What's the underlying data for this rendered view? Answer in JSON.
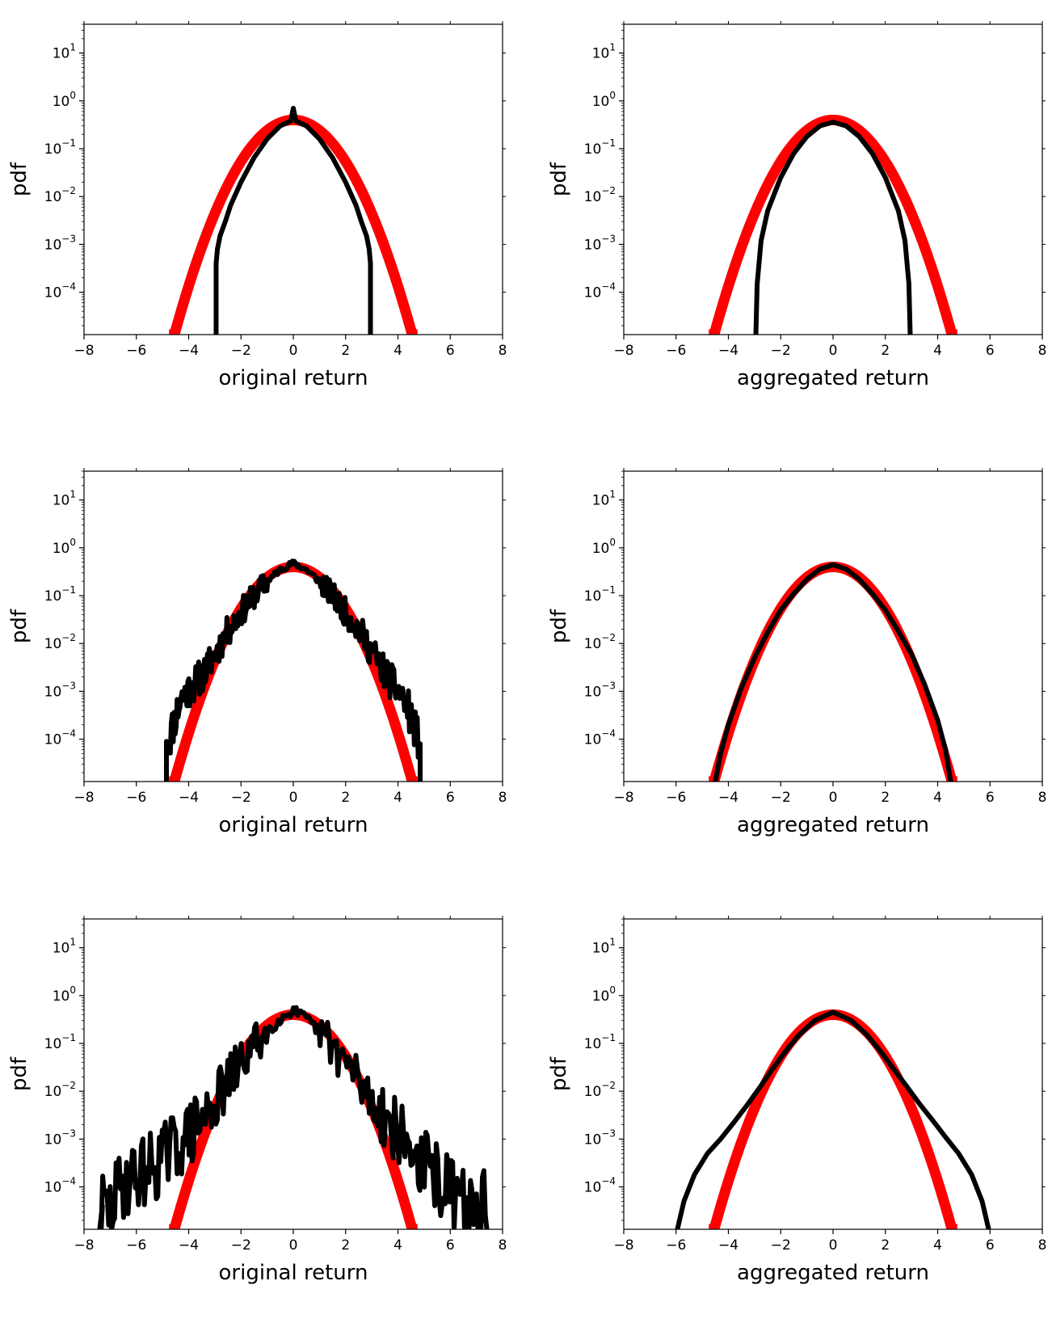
{
  "chart_data": [
    {
      "type": "line",
      "panel": "row1-left",
      "xlabel": "original return",
      "ylabel": "pdf",
      "xlim": [
        -8,
        8
      ],
      "xticks": [
        -8,
        -6,
        -4,
        -2,
        0,
        2,
        4,
        6,
        8
      ],
      "ylim": [
        1.3e-05,
        40
      ],
      "yscale": "log",
      "yticks": [
        {
          "base": "10",
          "exp": "−4",
          "value": 0.0001
        },
        {
          "base": "10",
          "exp": "−3",
          "value": 0.001
        },
        {
          "base": "10",
          "exp": "−2",
          "value": 0.01
        },
        {
          "base": "10",
          "exp": "−1",
          "value": 0.1
        },
        {
          "base": "10",
          "exp": "0",
          "value": 1
        },
        {
          "base": "10",
          "exp": "1",
          "value": 10
        }
      ],
      "grid": false,
      "series": [
        {
          "role": "gaussian",
          "color": "#ff0000",
          "shape": "gaussian",
          "sigma": 1.0,
          "xrange": [
            -4.75,
            4.75
          ]
        },
        {
          "role": "empirical",
          "color": "#000000",
          "shape": "bounded",
          "xrange": [
            -2.95,
            2.95
          ],
          "points": [
            [
              -2.95,
              1.3e-05
            ],
            [
              -2.95,
              0.0004
            ],
            [
              -2.9,
              0.0008
            ],
            [
              -2.8,
              0.0015
            ],
            [
              -2.6,
              0.003
            ],
            [
              -2.4,
              0.0065
            ],
            [
              -2.0,
              0.02
            ],
            [
              -1.5,
              0.065
            ],
            [
              -1.0,
              0.16
            ],
            [
              -0.5,
              0.3
            ],
            [
              -0.1,
              0.38
            ],
            [
              0.0,
              0.7
            ],
            [
              0.1,
              0.38
            ],
            [
              0.5,
              0.3
            ],
            [
              1.0,
              0.16
            ],
            [
              1.5,
              0.065
            ],
            [
              2.0,
              0.02
            ],
            [
              2.4,
              0.0065
            ],
            [
              2.6,
              0.003
            ],
            [
              2.8,
              0.0015
            ],
            [
              2.9,
              0.0008
            ],
            [
              2.95,
              0.0004
            ],
            [
              2.95,
              1.3e-05
            ]
          ]
        }
      ]
    },
    {
      "type": "line",
      "panel": "row1-right",
      "xlabel": "aggregated return",
      "ylabel": "pdf",
      "xlim": [
        -8,
        8
      ],
      "xticks": [
        -8,
        -6,
        -4,
        -2,
        0,
        2,
        4,
        6,
        8
      ],
      "ylim": [
        1.3e-05,
        40
      ],
      "yscale": "log",
      "yticks": [
        {
          "base": "10",
          "exp": "−4",
          "value": 0.0001
        },
        {
          "base": "10",
          "exp": "−3",
          "value": 0.001
        },
        {
          "base": "10",
          "exp": "−2",
          "value": 0.01
        },
        {
          "base": "10",
          "exp": "−1",
          "value": 0.1
        },
        {
          "base": "10",
          "exp": "0",
          "value": 1
        },
        {
          "base": "10",
          "exp": "1",
          "value": 10
        }
      ],
      "grid": false,
      "series": [
        {
          "role": "gaussian",
          "color": "#ff0000",
          "shape": "gaussian",
          "sigma": 1.0,
          "xrange": [
            -4.75,
            4.75
          ]
        },
        {
          "role": "empirical",
          "color": "#000000",
          "shape": "smooth",
          "points": [
            [
              -2.95,
              1.3e-05
            ],
            [
              -2.9,
              0.00015
            ],
            [
              -2.75,
              0.0012
            ],
            [
              -2.5,
              0.005
            ],
            [
              -2.0,
              0.025
            ],
            [
              -1.5,
              0.08
            ],
            [
              -1.0,
              0.18
            ],
            [
              -0.5,
              0.3
            ],
            [
              0.0,
              0.36
            ],
            [
              0.5,
              0.3
            ],
            [
              1.0,
              0.18
            ],
            [
              1.5,
              0.08
            ],
            [
              2.0,
              0.025
            ],
            [
              2.5,
              0.005
            ],
            [
              2.75,
              0.0012
            ],
            [
              2.9,
              0.00015
            ],
            [
              2.95,
              1.3e-05
            ]
          ]
        }
      ]
    },
    {
      "type": "line",
      "panel": "row2-left",
      "xlabel": "original return",
      "ylabel": "pdf",
      "xlim": [
        -8,
        8
      ],
      "xticks": [
        -8,
        -6,
        -4,
        -2,
        0,
        2,
        4,
        6,
        8
      ],
      "ylim": [
        1.3e-05,
        40
      ],
      "yscale": "log",
      "yticks": [
        {
          "base": "10",
          "exp": "−4",
          "value": 0.0001
        },
        {
          "base": "10",
          "exp": "−3",
          "value": 0.001
        },
        {
          "base": "10",
          "exp": "−2",
          "value": 0.01
        },
        {
          "base": "10",
          "exp": "−1",
          "value": 0.1
        },
        {
          "base": "10",
          "exp": "0",
          "value": 1
        },
        {
          "base": "10",
          "exp": "1",
          "value": 10
        }
      ],
      "grid": false,
      "series": [
        {
          "role": "gaussian",
          "color": "#ff0000",
          "shape": "gaussian",
          "sigma": 1.0,
          "xrange": [
            -4.75,
            4.75
          ]
        },
        {
          "role": "empirical",
          "color": "#000000",
          "shape": "noisy",
          "noise": 0.2,
          "seed": 11,
          "points": [
            [
              -4.85,
              1.3e-05
            ],
            [
              -4.85,
              9e-05
            ],
            [
              -4.7,
              0.00012
            ],
            [
              -4.5,
              0.0003
            ],
            [
              -4.3,
              0.0007
            ],
            [
              -4.0,
              0.0011
            ],
            [
              -3.7,
              0.0016
            ],
            [
              -3.4,
              0.0025
            ],
            [
              -3.0,
              0.006
            ],
            [
              -2.5,
              0.018
            ],
            [
              -2.0,
              0.045
            ],
            [
              -1.5,
              0.1
            ],
            [
              -1.0,
              0.2
            ],
            [
              -0.5,
              0.35
            ],
            [
              0.0,
              0.48
            ],
            [
              0.5,
              0.35
            ],
            [
              1.0,
              0.2
            ],
            [
              1.5,
              0.1
            ],
            [
              2.0,
              0.045
            ],
            [
              2.5,
              0.02
            ],
            [
              3.0,
              0.007
            ],
            [
              3.4,
              0.003
            ],
            [
              3.8,
              0.0014
            ],
            [
              4.2,
              0.0007
            ],
            [
              4.5,
              0.0003
            ],
            [
              4.7,
              0.00013
            ],
            [
              4.85,
              8e-05
            ],
            [
              4.85,
              1.3e-05
            ]
          ]
        }
      ]
    },
    {
      "type": "line",
      "panel": "row2-right",
      "xlabel": "aggregated return",
      "ylabel": "pdf",
      "xlim": [
        -8,
        8
      ],
      "xticks": [
        -8,
        -6,
        -4,
        -2,
        0,
        2,
        4,
        6,
        8
      ],
      "ylim": [
        1.3e-05,
        40
      ],
      "yscale": "log",
      "yticks": [
        {
          "base": "10",
          "exp": "−4",
          "value": 0.0001
        },
        {
          "base": "10",
          "exp": "−3",
          "value": 0.001
        },
        {
          "base": "10",
          "exp": "−2",
          "value": 0.01
        },
        {
          "base": "10",
          "exp": "−1",
          "value": 0.1
        },
        {
          "base": "10",
          "exp": "0",
          "value": 1
        },
        {
          "base": "10",
          "exp": "1",
          "value": 10
        }
      ],
      "grid": false,
      "series": [
        {
          "role": "gaussian",
          "color": "#ff0000",
          "shape": "gaussian",
          "sigma": 1.0,
          "xrange": [
            -4.75,
            4.75
          ]
        },
        {
          "role": "empirical",
          "color": "#000000",
          "shape": "smooth",
          "points": [
            [
              -4.5,
              1.3e-05
            ],
            [
              -4.3,
              5e-05
            ],
            [
              -4.0,
              0.0002
            ],
            [
              -3.5,
              0.0012
            ],
            [
              -3.0,
              0.005
            ],
            [
              -2.5,
              0.017
            ],
            [
              -2.0,
              0.05
            ],
            [
              -1.5,
              0.11
            ],
            [
              -1.0,
              0.22
            ],
            [
              -0.5,
              0.36
            ],
            [
              0.0,
              0.44
            ],
            [
              0.5,
              0.36
            ],
            [
              1.0,
              0.22
            ],
            [
              1.5,
              0.11
            ],
            [
              2.0,
              0.05
            ],
            [
              2.5,
              0.018
            ],
            [
              3.0,
              0.006
            ],
            [
              3.5,
              0.0014
            ],
            [
              4.0,
              0.00025
            ],
            [
              4.3,
              6e-05
            ],
            [
              4.5,
              1.3e-05
            ]
          ]
        }
      ]
    },
    {
      "type": "line",
      "panel": "row3-left",
      "xlabel": "original return",
      "ylabel": "pdf",
      "xlim": [
        -8,
        8
      ],
      "xticks": [
        -8,
        -6,
        -4,
        -2,
        0,
        2,
        4,
        6,
        8
      ],
      "ylim": [
        1.3e-05,
        40
      ],
      "yscale": "log",
      "yticks": [
        {
          "base": "10",
          "exp": "−4",
          "value": 0.0001
        },
        {
          "base": "10",
          "exp": "−3",
          "value": 0.001
        },
        {
          "base": "10",
          "exp": "−2",
          "value": 0.01
        },
        {
          "base": "10",
          "exp": "−1",
          "value": 0.1
        },
        {
          "base": "10",
          "exp": "0",
          "value": 1
        },
        {
          "base": "10",
          "exp": "1",
          "value": 10
        }
      ],
      "grid": false,
      "series": [
        {
          "role": "gaussian",
          "color": "#ff0000",
          "shape": "gaussian",
          "sigma": 1.0,
          "xrange": [
            -4.75,
            4.75
          ]
        },
        {
          "role": "empirical",
          "color": "#000000",
          "shape": "noisy",
          "noise": 0.35,
          "seed": 29,
          "points": [
            [
              -7.4,
              1.3e-05
            ],
            [
              -7.3,
              4e-05
            ],
            [
              -7.0,
              3e-05
            ],
            [
              -6.8,
              6e-05
            ],
            [
              -6.5,
              0.00012
            ],
            [
              -6.0,
              0.00018
            ],
            [
              -5.5,
              0.00025
            ],
            [
              -5.0,
              0.0004
            ],
            [
              -4.5,
              0.0007
            ],
            [
              -4.0,
              0.0012
            ],
            [
              -3.5,
              0.0025
            ],
            [
              -3.0,
              0.006
            ],
            [
              -2.5,
              0.015
            ],
            [
              -2.0,
              0.04
            ],
            [
              -1.5,
              0.09
            ],
            [
              -1.0,
              0.18
            ],
            [
              -0.5,
              0.32
            ],
            [
              0.0,
              0.5
            ],
            [
              0.5,
              0.32
            ],
            [
              1.0,
              0.18
            ],
            [
              1.5,
              0.09
            ],
            [
              2.0,
              0.04
            ],
            [
              2.5,
              0.016
            ],
            [
              3.0,
              0.007
            ],
            [
              3.5,
              0.003
            ],
            [
              4.0,
              0.0013
            ],
            [
              4.5,
              0.0006
            ],
            [
              5.0,
              0.0003
            ],
            [
              5.5,
              0.00015
            ],
            [
              6.0,
              8e-05
            ],
            [
              6.5,
              4e-05
            ],
            [
              7.0,
              3e-05
            ],
            [
              7.3,
              4e-05
            ],
            [
              7.4,
              1.3e-05
            ]
          ]
        }
      ]
    },
    {
      "type": "line",
      "panel": "row3-right",
      "xlabel": "aggregated return",
      "ylabel": "pdf",
      "xlim": [
        -8,
        8
      ],
      "xticks": [
        -8,
        -6,
        -4,
        -2,
        0,
        2,
        4,
        6,
        8
      ],
      "ylim": [
        1.3e-05,
        40
      ],
      "yscale": "log",
      "yticks": [
        {
          "base": "10",
          "exp": "−4",
          "value": 0.0001
        },
        {
          "base": "10",
          "exp": "−3",
          "value": 0.001
        },
        {
          "base": "10",
          "exp": "−2",
          "value": 0.01
        },
        {
          "base": "10",
          "exp": "−1",
          "value": 0.1
        },
        {
          "base": "10",
          "exp": "0",
          "value": 1
        },
        {
          "base": "10",
          "exp": "1",
          "value": 10
        }
      ],
      "grid": false,
      "series": [
        {
          "role": "gaussian",
          "color": "#ff0000",
          "shape": "gaussian",
          "sigma": 1.0,
          "xrange": [
            -4.75,
            4.75
          ]
        },
        {
          "role": "empirical",
          "color": "#000000",
          "shape": "smooth",
          "points": [
            [
              -5.95,
              1.3e-05
            ],
            [
              -5.7,
              5e-05
            ],
            [
              -5.3,
              0.00018
            ],
            [
              -4.8,
              0.0005
            ],
            [
              -4.3,
              0.001
            ],
            [
              -3.8,
              0.0022
            ],
            [
              -3.3,
              0.005
            ],
            [
              -2.8,
              0.012
            ],
            [
              -2.3,
              0.03
            ],
            [
              -1.8,
              0.07
            ],
            [
              -1.3,
              0.15
            ],
            [
              -0.7,
              0.3
            ],
            [
              0.0,
              0.45
            ],
            [
              0.7,
              0.3
            ],
            [
              1.3,
              0.15
            ],
            [
              1.8,
              0.07
            ],
            [
              2.3,
              0.03
            ],
            [
              2.8,
              0.013
            ],
            [
              3.3,
              0.0055
            ],
            [
              3.8,
              0.0025
            ],
            [
              4.3,
              0.0011
            ],
            [
              4.8,
              0.0005
            ],
            [
              5.3,
              0.00018
            ],
            [
              5.7,
              5e-05
            ],
            [
              5.95,
              1.3e-05
            ]
          ]
        }
      ]
    }
  ]
}
